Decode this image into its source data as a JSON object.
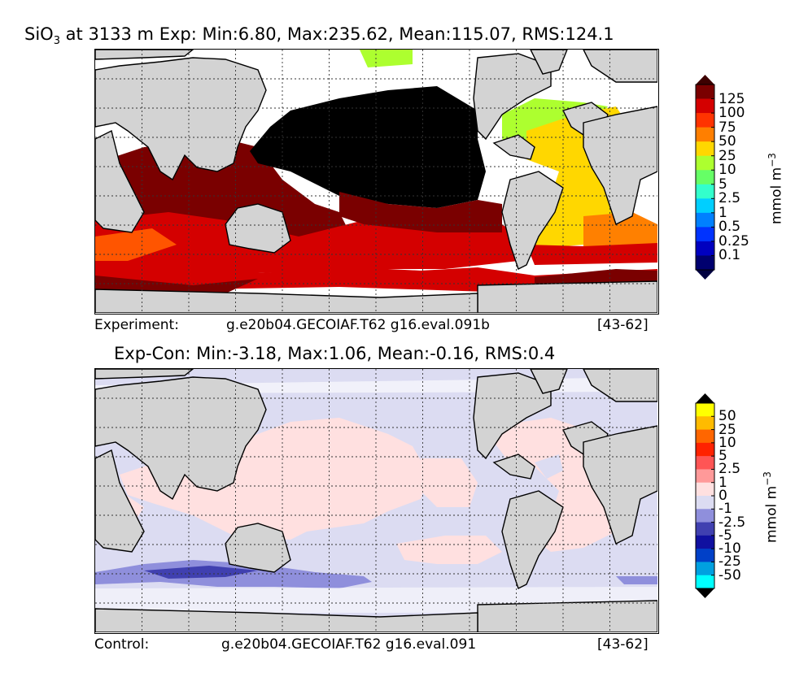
{
  "top_panel": {
    "title_prefix": "SiO",
    "title_sub": "3",
    "title_rest": " at 3133 m Exp: Min:6.80, Max:235.62, Mean:115.07, RMS:124.1",
    "footer_left": "Experiment:",
    "footer_center": "g.e20b04.GECOIAF.T62 g16.eval.091b",
    "footer_right": "[43-62]",
    "colorbar": {
      "unit_label": "mmol m",
      "unit_exp": "−3",
      "ticks": [
        "125",
        "100",
        "75",
        "50",
        "25",
        "10",
        "5",
        "2.5",
        "1",
        "0.5",
        "0.25",
        "0.1"
      ],
      "colors": [
        "#7a0000",
        "#d40000",
        "#ff3300",
        "#ff7f00",
        "#ffd700",
        "#adff2f",
        "#66ff66",
        "#33ffcc",
        "#00cfff",
        "#0080ff",
        "#0033ff",
        "#0000c0",
        "#00006f"
      ],
      "arrow_top": "#3d0000",
      "arrow_bottom": "#000040"
    }
  },
  "bottom_panel": {
    "title": "Exp-Con: Min:-3.18, Max:1.06, Mean:-0.16, RMS:0.4",
    "footer_left": "Control:",
    "footer_center": "g.e20b04.GECOIAF.T62 g16.eval.091",
    "footer_right": "[43-62]",
    "colorbar": {
      "unit_label": "mmol m",
      "unit_exp": "−3",
      "ticks": [
        "50",
        "25",
        "10",
        "5",
        "2.5",
        "1",
        "0",
        "-1",
        "-2.5",
        "-5",
        "-10",
        "-25",
        "-50"
      ],
      "colors": [
        "#ffff00",
        "#ffbb00",
        "#ff6600",
        "#ff2200",
        "#ff5555",
        "#ff9999",
        "#ffe0e0",
        "#dcdcf2",
        "#8f8fdc",
        "#4040b0",
        "#1010a0",
        "#0040c8",
        "#00a0e0",
        "#00ffff"
      ],
      "arrow_top": "#000000",
      "arrow_bottom": "#000000"
    }
  }
}
